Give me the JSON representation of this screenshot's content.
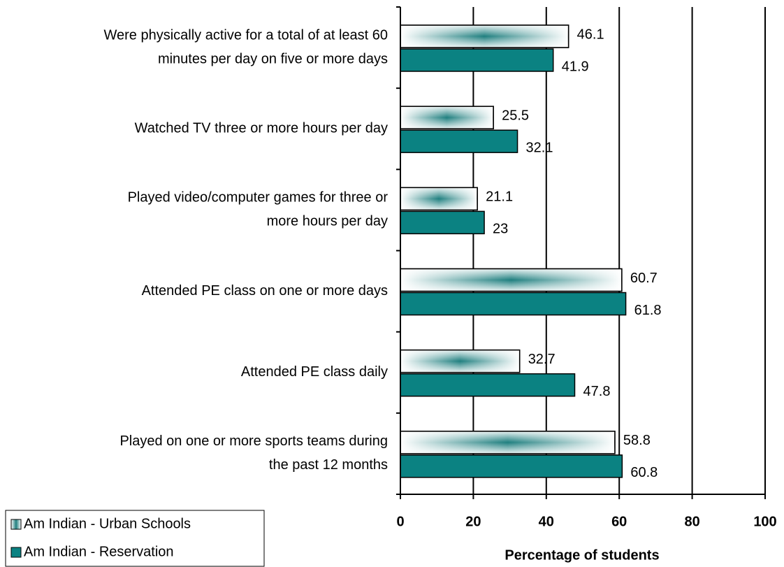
{
  "chart_data": {
    "type": "hbar",
    "categories": [
      [
        "Were physically active for a total of at least 60",
        "minutes per day on five or more days"
      ],
      [
        "Watched TV three or more hours per day"
      ],
      [
        "Played video/computer games for three or",
        "more hours per day"
      ],
      [
        "Attended PE class on one or more days"
      ],
      [
        "Attended PE class daily"
      ],
      [
        "Played on one or more sports teams during",
        "the past 12 months"
      ]
    ],
    "series": [
      {
        "name": "Am Indian - Urban Schools",
        "color": "#1f7f7f",
        "fill": "gradient",
        "values": [
          46.1,
          25.5,
          21.1,
          60.7,
          32.7,
          58.8
        ]
      },
      {
        "name": "Am Indian - Reservation",
        "color": "#0b8282",
        "values": [
          41.9,
          32.1,
          23,
          61.8,
          47.8,
          60.8
        ]
      }
    ],
    "xlabel": "Percentage of students",
    "xlim": [
      0,
      100
    ],
    "xticks": [
      0,
      20,
      40,
      60,
      80,
      100
    ],
    "grid": true,
    "legend": "bottom-left"
  }
}
